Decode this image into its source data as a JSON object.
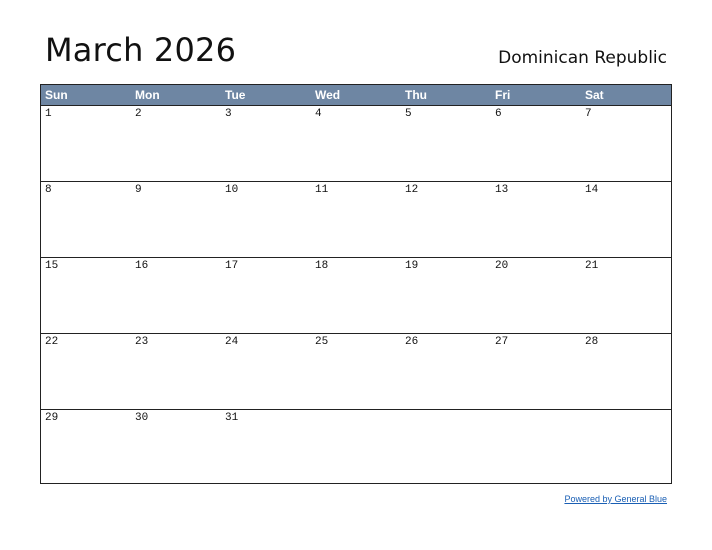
{
  "title": "March 2026",
  "country": "Dominican Republic",
  "weekdays": [
    "Sun",
    "Mon",
    "Tue",
    "Wed",
    "Thu",
    "Fri",
    "Sat"
  ],
  "weeks": [
    [
      "1",
      "2",
      "3",
      "4",
      "5",
      "6",
      "7"
    ],
    [
      "8",
      "9",
      "10",
      "11",
      "12",
      "13",
      "14"
    ],
    [
      "15",
      "16",
      "17",
      "18",
      "19",
      "20",
      "21"
    ],
    [
      "22",
      "23",
      "24",
      "25",
      "26",
      "27",
      "28"
    ],
    [
      "29",
      "30",
      "31",
      "",
      "",
      "",
      ""
    ]
  ],
  "footer": "Powered by General Blue",
  "colors": {
    "header_bg": "#6e86a3",
    "link": "#1a5fb4"
  }
}
